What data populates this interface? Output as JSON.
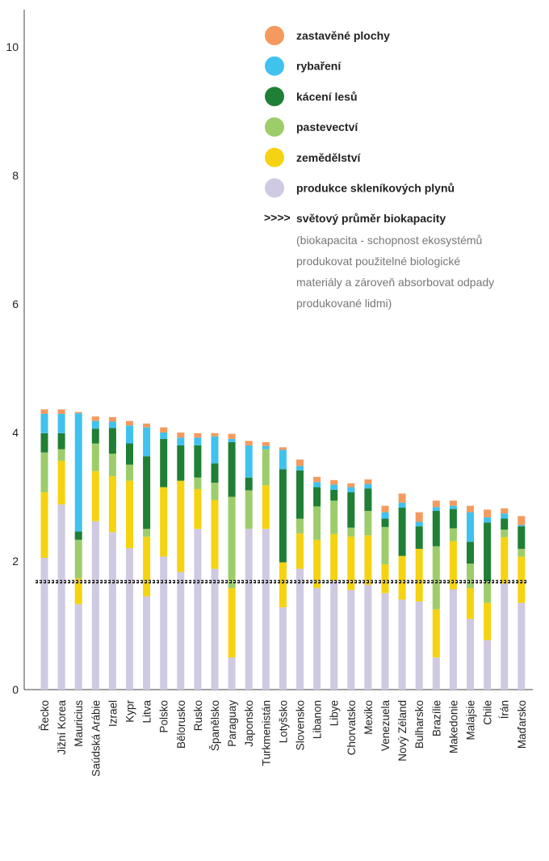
{
  "chart_data": {
    "type": "bar",
    "stacked": true,
    "ylim": [
      0,
      10.5
    ],
    "yticks": [
      "0",
      "2",
      "4",
      "6",
      "8",
      "10"
    ],
    "grid": false,
    "legend_position": "top-right",
    "categories": [
      "Řecko",
      "Jižní Korea",
      "Mauricius",
      "Saúdská Arábie",
      "Izrael",
      "Kypr",
      "Litva",
      "Polsko",
      "Bělorusko",
      "Rusko",
      "Španělsko",
      "Paraguay",
      "Japonsko",
      "Turkmenistán",
      "Lotyšsko",
      "Slovensko",
      "Libanon",
      "Libye",
      "Chorvatsko",
      "Mexiko",
      "Venezuela",
      "Nový Zéland",
      "Bulharsko",
      "Brazílie",
      "Makedonie",
      "Malajsie",
      "Chile",
      "Írán",
      "Maďarsko"
    ],
    "series": [
      {
        "name": "produkce skleníkových plynů",
        "color": "#cfc9e2",
        "values": [
          2.05,
          2.88,
          1.33,
          2.62,
          2.45,
          2.2,
          1.45,
          2.07,
          1.83,
          2.5,
          1.88,
          0.5,
          2.5,
          2.5,
          1.28,
          1.88,
          1.58,
          1.7,
          1.55,
          1.63,
          1.5,
          1.4,
          1.37,
          0.5,
          1.56,
          1.1,
          0.77,
          1.65,
          1.35
        ]
      },
      {
        "name": "zemědělství",
        "color": "#f5d311",
        "values": [
          1.02,
          0.68,
          0.4,
          0.78,
          0.87,
          1.05,
          0.93,
          1.08,
          1.42,
          0.62,
          1.07,
          1.08,
          0.0,
          0.68,
          0.7,
          0.55,
          0.75,
          0.72,
          0.83,
          0.77,
          0.45,
          0.68,
          0.82,
          0.75,
          0.75,
          0.48,
          0.58,
          0.72,
          0.72
        ]
      },
      {
        "name": "pastevectví",
        "color": "#9dcd6b",
        "values": [
          0.62,
          0.18,
          0.6,
          0.43,
          0.35,
          0.25,
          0.12,
          0.0,
          0.0,
          0.18,
          0.27,
          1.42,
          0.6,
          0.56,
          0.0,
          0.23,
          0.52,
          0.52,
          0.14,
          0.38,
          0.58,
          0.0,
          0.0,
          0.98,
          0.2,
          0.38,
          0.33,
          0.12,
          0.12
        ]
      },
      {
        "name": "kácení lesů",
        "color": "#1f7f35",
        "values": [
          0.3,
          0.25,
          0.13,
          0.23,
          0.4,
          0.33,
          1.13,
          0.75,
          0.55,
          0.5,
          0.3,
          0.85,
          0.2,
          0.0,
          1.45,
          0.75,
          0.3,
          0.17,
          0.55,
          0.35,
          0.13,
          0.75,
          0.35,
          0.55,
          0.3,
          0.34,
          0.92,
          0.17,
          0.35
        ]
      },
      {
        "name": "rybaření",
        "color": "#40c2ef",
        "values": [
          0.3,
          0.3,
          1.84,
          0.12,
          0.1,
          0.28,
          0.45,
          0.1,
          0.12,
          0.12,
          0.42,
          0.05,
          0.5,
          0.05,
          0.3,
          0.07,
          0.08,
          0.08,
          0.08,
          0.07,
          0.1,
          0.08,
          0.07,
          0.06,
          0.05,
          0.46,
          0.08,
          0.08,
          0.02
        ]
      },
      {
        "name": "zastavěné plochy",
        "color": "#f49a5e",
        "values": [
          0.07,
          0.07,
          0.02,
          0.07,
          0.07,
          0.07,
          0.06,
          0.08,
          0.08,
          0.07,
          0.05,
          0.08,
          0.07,
          0.06,
          0.04,
          0.1,
          0.08,
          0.07,
          0.06,
          0.07,
          0.1,
          0.14,
          0.15,
          0.1,
          0.08,
          0.1,
          0.12,
          0.08,
          0.14
        ]
      }
    ],
    "reference_line": {
      "name": "světový průměr biokapacity",
      "value": 1.68,
      "color": "#111111"
    },
    "annotation": "(biokapacita - schopnost ekosystémů produkovat použitelné biologické materiály a zároveň absorbovat odpady produkované lidmi)",
    "annotation_lines": [
      "(biokapacita - schopnost ekosystémů",
      "produkovat použitelné biologické",
      "materiály a zároveň absorbovat odpady",
      "produkované lidmi)"
    ]
  },
  "legend_order": [
    "zastavěné plochy",
    "rybaření",
    "kácení lesů",
    "pastevectví",
    "zemědělství",
    "produkce skleníkových plynů"
  ],
  "reference_marker_glyph": ">>>>"
}
